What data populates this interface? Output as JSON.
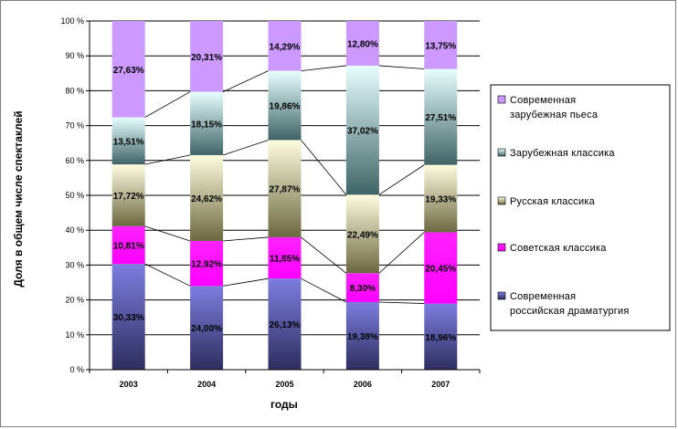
{
  "chart_data": {
    "type": "bar",
    "stacked": true,
    "percent": true,
    "categories": [
      "2003",
      "2004",
      "2005",
      "2006",
      "2007"
    ],
    "series": [
      {
        "name": "Современная российская драматургия",
        "values": [
          30.33,
          24.0,
          26.13,
          19.38,
          18.96
        ],
        "labels": [
          "30,33%",
          "24,00%",
          "26,13%",
          "19,38%",
          "18,96%"
        ],
        "color": "#7d7de0",
        "color_dark": "#2e2e5e"
      },
      {
        "name": "Советская классика",
        "values": [
          10.81,
          12.92,
          11.85,
          8.3,
          20.45
        ],
        "labels": [
          "10,81%",
          "12,92%",
          "11,85%",
          "8,30%",
          "20,45%"
        ],
        "color": "#ff22ff",
        "color_dark": "#ff00ff"
      },
      {
        "name": "Русская классика",
        "values": [
          17.72,
          24.62,
          27.87,
          22.49,
          19.33
        ],
        "labels": [
          "17,72%",
          "24,62%",
          "27,87%",
          "22,49%",
          "19,33%"
        ],
        "color": "#fffde0",
        "color_dark": "#6b6840"
      },
      {
        "name": "Зарубежная классика",
        "values": [
          13.51,
          18.15,
          19.86,
          37.02,
          27.51
        ],
        "labels": [
          "13,51%",
          "18,15%",
          "19,86%",
          "37,02%",
          "27,51%"
        ],
        "color": "#e8ffff",
        "color_dark": "#3f6466"
      },
      {
        "name": "Современная зарубежная пьеса",
        "values": [
          27.63,
          20.31,
          14.29,
          12.8,
          13.75
        ],
        "labels": [
          "27,63%",
          "20,31%",
          "14,29%",
          "12,80%",
          "13,75%"
        ],
        "color": "#cc99ff",
        "color_dark": "#cc99ff"
      }
    ],
    "legend": [
      "Современная зарубежная пьеса",
      "Зарубежная классика",
      "Русская классика",
      "Советская классика",
      "Современная российская драматургия"
    ],
    "legend_position": "right",
    "series_lines": true,
    "xlabel": "годы",
    "ylabel": "Доля в общем числе спектаклей",
    "ylim": [
      0,
      100
    ],
    "yticks": [
      "0 %",
      "10 %",
      "20 %",
      "30 %",
      "40 %",
      "50 %",
      "60 %",
      "70 %",
      "80 %",
      "90 %",
      "100 %"
    ],
    "grid": true
  }
}
